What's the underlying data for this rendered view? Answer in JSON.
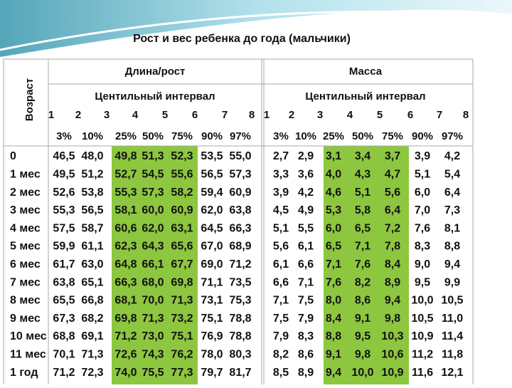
{
  "title": "Рост и вес ребенка до года (мальчики)",
  "table": {
    "age_header": "Возраст",
    "groups": [
      {
        "title": "Длина/рост",
        "subtitle": "Центильный интервал",
        "numbers": [
          "1",
          "2",
          "3",
          "4",
          "5",
          "6",
          "7",
          "8"
        ],
        "percents": [
          "3%",
          "10%",
          "25%",
          "50%",
          "75%",
          "90%",
          "97%"
        ]
      },
      {
        "title": "Масса",
        "subtitle": "Центильный интервал",
        "numbers": [
          "1",
          "2",
          "3",
          "4",
          "5",
          "6",
          "7",
          "8"
        ],
        "percents": [
          "3%",
          "10%",
          "25%",
          "50%",
          "75%",
          "90%",
          "97%"
        ]
      }
    ],
    "rows": [
      {
        "age": "0",
        "values": [
          [
            "46,5",
            "48,0",
            "49,8",
            "51,3",
            "52,3",
            "53,5",
            "55,0"
          ],
          [
            "2,7",
            "2,9",
            "3,1",
            "3,4",
            "3,7",
            "3,9",
            "4,2"
          ]
        ]
      },
      {
        "age": "1 мес",
        "values": [
          [
            "49,5",
            "51,2",
            "52,7",
            "54,5",
            "55,6",
            "56,5",
            "57,3"
          ],
          [
            "3,3",
            "3,6",
            "4,0",
            "4,3",
            "4,7",
            "5,1",
            "5,4"
          ]
        ]
      },
      {
        "age": "2 мес",
        "values": [
          [
            "52,6",
            "53,8",
            "55,3",
            "57,3",
            "58,2",
            "59,4",
            "60,9"
          ],
          [
            "3,9",
            "4,2",
            "4,6",
            "5,1",
            "5,6",
            "6,0",
            "6,4"
          ]
        ]
      },
      {
        "age": "3 мес",
        "values": [
          [
            "55,3",
            "56,5",
            "58,1",
            "60,0",
            "60,9",
            "62,0",
            "63,8"
          ],
          [
            "4,5",
            "4,9",
            "5,3",
            "5,8",
            "6,4",
            "7,0",
            "7,3"
          ]
        ]
      },
      {
        "age": "4 мес",
        "values": [
          [
            "57,5",
            "58,7",
            "60,6",
            "62,0",
            "63,1",
            "64,5",
            "66,3"
          ],
          [
            "5,1",
            "5,5",
            "6,0",
            "6,5",
            "7,2",
            "7,6",
            "8,1"
          ]
        ]
      },
      {
        "age": "5 мес",
        "values": [
          [
            "59,9",
            "61,1",
            "62,3",
            "64,3",
            "65,6",
            "67,0",
            "68,9"
          ],
          [
            "5,6",
            "6,1",
            "6,5",
            "7,1",
            "7,8",
            "8,3",
            "8,8"
          ]
        ]
      },
      {
        "age": "6 мес",
        "values": [
          [
            "61,7",
            "63,0",
            "64,8",
            "66,1",
            "67,7",
            "69,0",
            "71,2"
          ],
          [
            "6,1",
            "6,6",
            "7,1",
            "7,6",
            "8,4",
            "9,0",
            "9,4"
          ]
        ]
      },
      {
        "age": "7 мес",
        "values": [
          [
            "63,8",
            "65,1",
            "66,3",
            "68,0",
            "69,8",
            "71,1",
            "73,5"
          ],
          [
            "6,6",
            "7,1",
            "7,6",
            "8,2",
            "8,9",
            "9,5",
            "9,9"
          ]
        ]
      },
      {
        "age": "8 мес",
        "values": [
          [
            "65,5",
            "66,8",
            "68,1",
            "70,0",
            "71,3",
            "73,1",
            "75,3"
          ],
          [
            "7,1",
            "7,5",
            "8,0",
            "8,6",
            "9,4",
            "10,0",
            "10,5"
          ]
        ]
      },
      {
        "age": "9 мес",
        "values": [
          [
            "67,3",
            "68,2",
            "69,8",
            "71,3",
            "73,2",
            "75,1",
            "78,8"
          ],
          [
            "7,5",
            "7,9",
            "8,4",
            "9,1",
            "9,8",
            "10,5",
            "11,0"
          ]
        ]
      },
      {
        "age": "10 мес",
        "values": [
          [
            "68,8",
            "69,1",
            "71,2",
            "73,0",
            "75,1",
            "76,9",
            "78,8"
          ],
          [
            "7,9",
            "8,3",
            "8,8",
            "9,5",
            "10,3",
            "10,9",
            "11,4"
          ]
        ]
      },
      {
        "age": "11 мес",
        "values": [
          [
            "70,1",
            "71,3",
            "72,6",
            "74,3",
            "76,2",
            "78,0",
            "80,3"
          ],
          [
            "8,2",
            "8,6",
            "9,1",
            "9,8",
            "10,6",
            "11,2",
            "11,8"
          ]
        ]
      },
      {
        "age": "1 год",
        "values": [
          [
            "71,2",
            "72,3",
            "74,0",
            "75,5",
            "77,3",
            "79,7",
            "81,7"
          ],
          [
            "8,5",
            "8,9",
            "9,4",
            "10,0",
            "10,9",
            "11,6",
            "12,1"
          ]
        ]
      }
    ]
  }
}
